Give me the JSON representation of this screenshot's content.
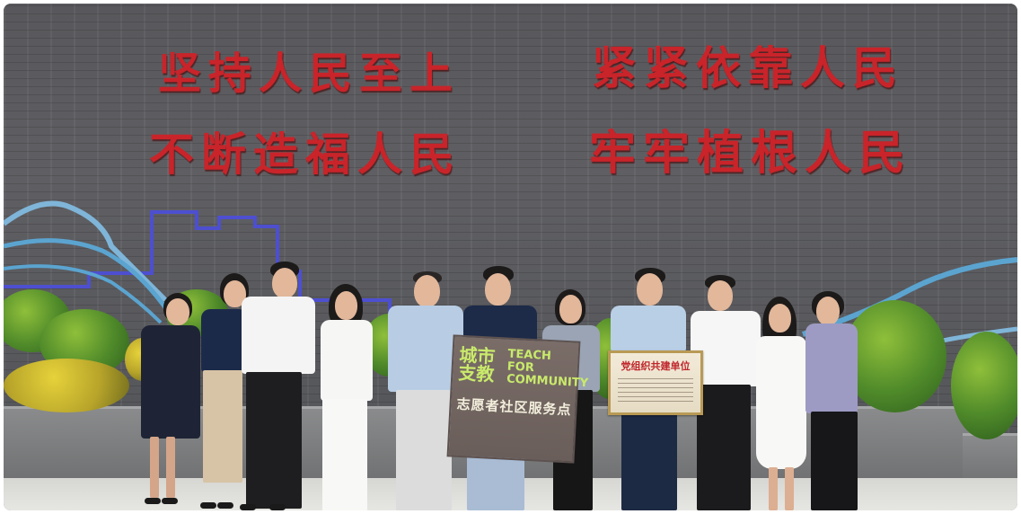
{
  "slogans": {
    "line1_left": "坚持人民至上",
    "line1_right": "紧紧依靠人民",
    "line2_left": "不断造福人民",
    "line2_right": "牢牢植根人民"
  },
  "sign": {
    "logo_cn": "城市支教",
    "logo_en": "TEACH FOR COMMUNITY",
    "service_text": "志愿者社区服务点"
  },
  "plaque": {
    "title": "党组织共建单位"
  },
  "colors": {
    "slogan_red": "#c8242a",
    "wall_gray": "#5d5d60",
    "accent_blue": "#5ba4d0",
    "sign_green": "#c9ea6b"
  }
}
